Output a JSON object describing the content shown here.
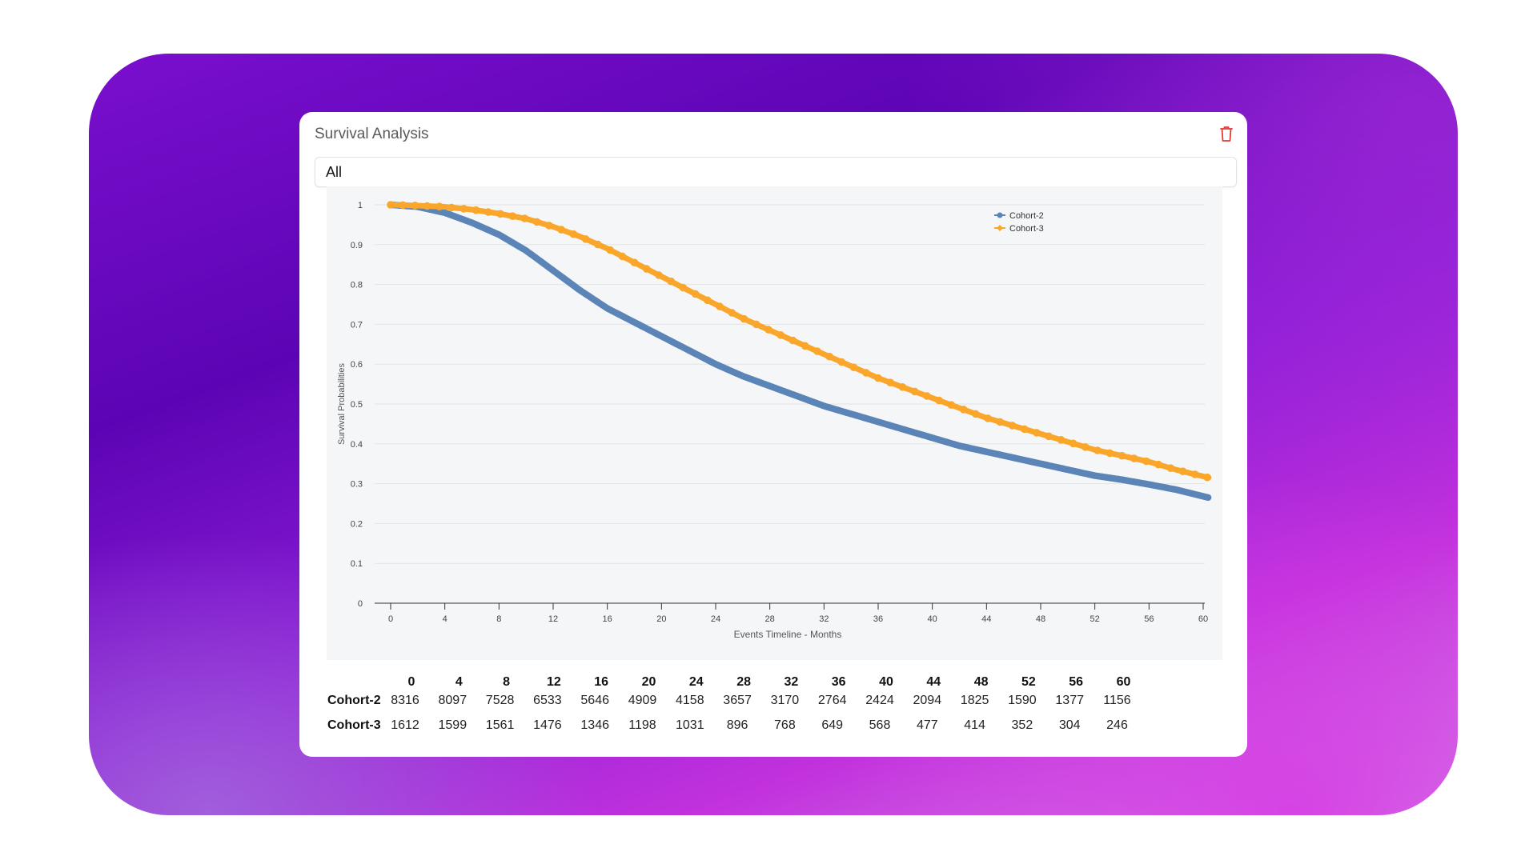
{
  "panel": {
    "title": "Survival Analysis",
    "delete_icon": "trash-icon",
    "delete_color": "#e53935"
  },
  "filter": {
    "selected": "All"
  },
  "colors": {
    "cohort2": "#5b84b7",
    "cohort3": "#f9a62a",
    "accent": "#6a06bd"
  },
  "chart_data": {
    "type": "line",
    "xlabel": "Events Timeline - Months",
    "ylabel": "Survival Probabilities",
    "xlim": [
      0,
      60
    ],
    "ylim": [
      0,
      1
    ],
    "xticks": [
      0,
      4,
      8,
      12,
      16,
      20,
      24,
      28,
      32,
      36,
      40,
      44,
      48,
      52,
      56,
      60
    ],
    "yticks": [
      0,
      0.1,
      0.2,
      0.3,
      0.4,
      0.5,
      0.6,
      0.7,
      0.8,
      0.9,
      1
    ],
    "ytick_labels": [
      "0",
      "0.1",
      "0.2",
      "0.3",
      "0.4",
      "0.5",
      "0.6",
      "0.7",
      "0.8",
      "0.9",
      "1"
    ],
    "grid": true,
    "legend_position": "top-right",
    "series": [
      {
        "name": "Cohort-2",
        "marker": "circle",
        "x": [
          0,
          2,
          4,
          6,
          8,
          10,
          12,
          14,
          16,
          18,
          20,
          22,
          24,
          26,
          28,
          30,
          32,
          34,
          36,
          38,
          40,
          42,
          44,
          46,
          48,
          50,
          52,
          54,
          56,
          58,
          60.4
        ],
        "y": [
          1.0,
          0.995,
          0.98,
          0.955,
          0.925,
          0.885,
          0.835,
          0.785,
          0.74,
          0.705,
          0.67,
          0.635,
          0.6,
          0.57,
          0.545,
          0.52,
          0.495,
          0.475,
          0.455,
          0.435,
          0.415,
          0.395,
          0.38,
          0.365,
          0.35,
          0.335,
          0.32,
          0.31,
          0.298,
          0.285,
          0.265
        ]
      },
      {
        "name": "Cohort-3",
        "marker": "diamond",
        "x": [
          0,
          2,
          4,
          6,
          8,
          10,
          12,
          14,
          16,
          18,
          20,
          22,
          24,
          26,
          28,
          30,
          32,
          34,
          36,
          38,
          40,
          42,
          44,
          46,
          48,
          50,
          52,
          54,
          56,
          58,
          60.4
        ],
        "y": [
          1.0,
          0.998,
          0.995,
          0.988,
          0.978,
          0.965,
          0.945,
          0.92,
          0.89,
          0.855,
          0.82,
          0.785,
          0.75,
          0.715,
          0.685,
          0.655,
          0.625,
          0.595,
          0.565,
          0.54,
          0.515,
          0.49,
          0.465,
          0.445,
          0.425,
          0.405,
          0.385,
          0.37,
          0.355,
          0.335,
          0.315
        ]
      }
    ]
  },
  "risk_table": {
    "timepoints": [
      "0",
      "4",
      "8",
      "12",
      "16",
      "20",
      "24",
      "28",
      "32",
      "36",
      "40",
      "44",
      "48",
      "52",
      "56",
      "60"
    ],
    "rows": [
      {
        "label": "Cohort-2",
        "values": [
          "8316",
          "8097",
          "7528",
          "6533",
          "5646",
          "4909",
          "4158",
          "3657",
          "3170",
          "2764",
          "2424",
          "2094",
          "1825",
          "1590",
          "1377",
          "1156"
        ]
      },
      {
        "label": "Cohort-3",
        "values": [
          "1612",
          "1599",
          "1561",
          "1476",
          "1346",
          "1198",
          "1031",
          "896",
          "768",
          "649",
          "568",
          "477",
          "414",
          "352",
          "304",
          "246"
        ]
      }
    ]
  }
}
